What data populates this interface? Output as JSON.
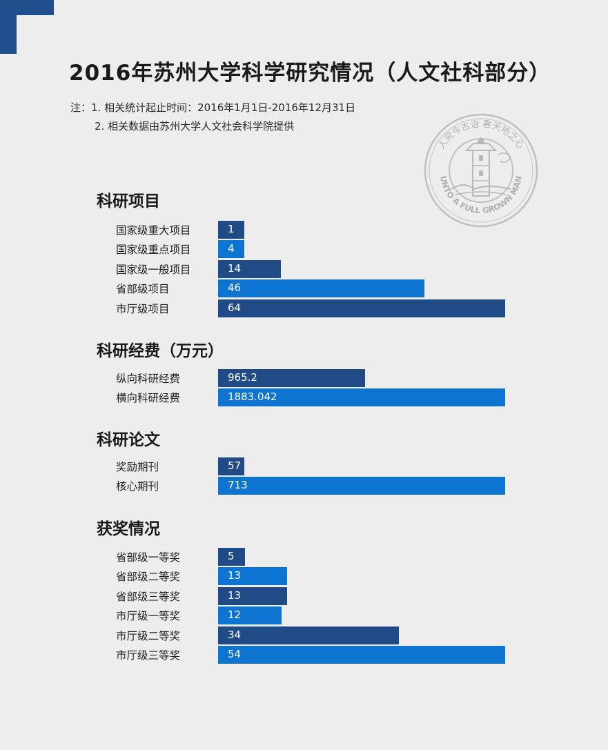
{
  "title": "2016年苏州大学科学研究情况（人文社科部分）",
  "notes": {
    "line1": "注：1. 相关统计起止时间：2016年1月1日-2016年12月31日",
    "line2": "2. 相关数据由苏州大学人文社会科学院提供"
  },
  "seal": {
    "top_text": "人究今古治 春天地之心",
    "bottom_text": "UNTO A FULL GROWN MAN"
  },
  "colors": {
    "background": "#ededee",
    "dark_bar": "#214b86",
    "light_bar": "#0d74d2",
    "corner": "#1f4f8c"
  },
  "chart_data": [
    {
      "type": "bar",
      "orientation": "horizontal",
      "title": "科研项目",
      "categories": [
        "国家级重大项目",
        "国家级重点项目",
        "国家级一般项目",
        "省部级项目",
        "市厅级项目"
      ],
      "values": [
        1,
        4,
        14,
        46,
        64
      ],
      "value_labels": [
        "1",
        "4",
        "14",
        "46",
        "64"
      ]
    },
    {
      "type": "bar",
      "orientation": "horizontal",
      "title": "科研经费（万元）",
      "categories": [
        "纵向科研经费",
        "横向科研经费"
      ],
      "values": [
        965.2,
        1883.042
      ],
      "value_labels": [
        "965.2",
        "1883.042"
      ]
    },
    {
      "type": "bar",
      "orientation": "horizontal",
      "title": "科研论文",
      "categories": [
        "奖励期刊",
        "核心期刊"
      ],
      "values": [
        57,
        713
      ],
      "value_labels": [
        "57",
        "713"
      ]
    },
    {
      "type": "bar",
      "orientation": "horizontal",
      "title": "获奖情况",
      "categories": [
        "省部级一等奖",
        "省部级二等奖",
        "省部级三等奖",
        "市厅级一等奖",
        "市厅级二等奖",
        "市厅级三等奖"
      ],
      "values": [
        5,
        13,
        13,
        12,
        34,
        54
      ],
      "value_labels": [
        "5",
        "13",
        "13",
        "12",
        "34",
        "54"
      ]
    }
  ]
}
